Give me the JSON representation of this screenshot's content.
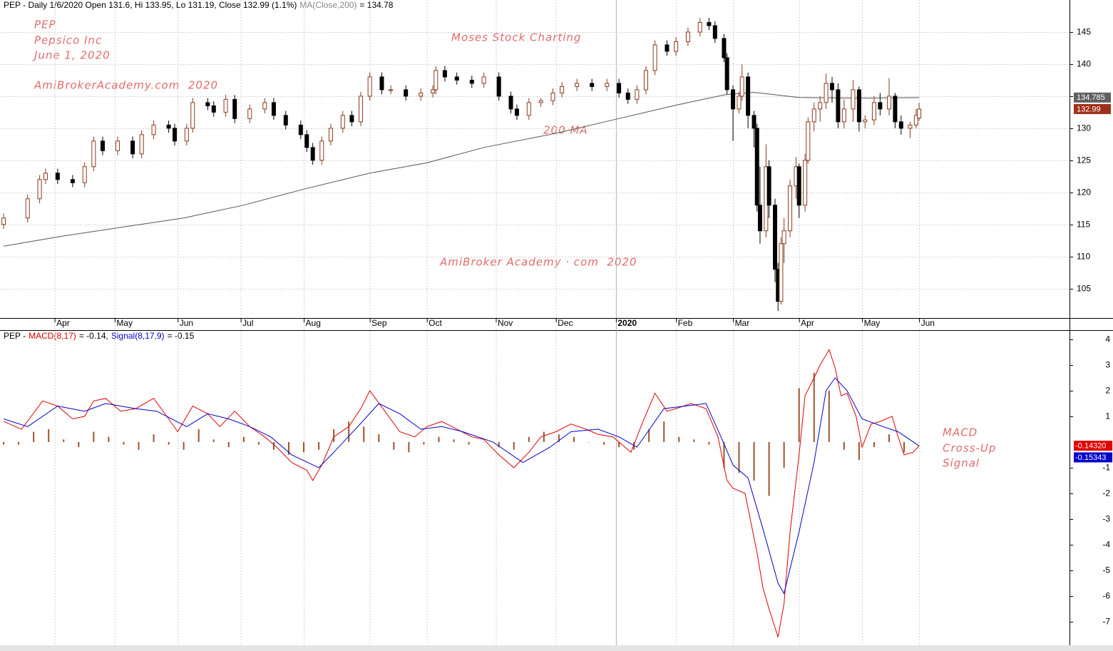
{
  "chart_data": [
    {
      "type": "candlestick",
      "title": "PEP - Daily 1/6/2020 Open 131.6, Hi 133.95, Lo 131.19, Close 132.99 (1.1%)",
      "x": [
        0,
        8,
        12,
        14,
        18,
        23,
        27,
        30,
        33,
        38,
        43,
        46,
        50,
        55,
        57,
        61,
        63,
        68,
        70,
        74,
        77,
        82,
        87,
        90,
        94,
        99,
        101,
        103,
        106,
        109,
        113,
        116,
        119,
        122,
        126,
        129,
        134,
        139,
        143,
        144,
        147,
        151,
        156,
        160,
        165,
        169,
        171,
        175,
        179,
        183,
        186,
        191,
        196,
        201,
        205,
        208,
        211,
        214,
        217,
        221,
        224,
        228,
        232,
        235,
        237,
        240,
        241,
        243,
        245,
        246,
        248,
        250,
        251,
        252,
        254,
        255,
        257,
        258,
        259,
        260,
        262,
        264,
        265,
        267,
        268,
        270,
        272,
        274,
        276,
        278,
        280,
        283,
        285,
        287,
        290,
        292,
        295,
        297,
        299,
        302,
        304,
        305
      ],
      "open": [
        115,
        116,
        119,
        122,
        123,
        122,
        121.5,
        124,
        128,
        126.5,
        128,
        126,
        129,
        130.5,
        130,
        128,
        130,
        134,
        133.5,
        132.5,
        134.5,
        131.5,
        133,
        134,
        132,
        130.5,
        129,
        127,
        125,
        128,
        130,
        132,
        131,
        135,
        138,
        136,
        136,
        135,
        135.5,
        136,
        139,
        138,
        137.5,
        137,
        138,
        135,
        133,
        132,
        134,
        134.3,
        135.5,
        136.5,
        137,
        136.5,
        137,
        135.5,
        134.5,
        136,
        139,
        143,
        142,
        143.5,
        145,
        146.5,
        146,
        144,
        141,
        136,
        133,
        135,
        138,
        132,
        130,
        118,
        114,
        124,
        118,
        108,
        103,
        112,
        114,
        121,
        124,
        118,
        125,
        131,
        133,
        134,
        137,
        136,
        131,
        133,
        136,
        131,
        131.3,
        134,
        133,
        135,
        131,
        130,
        130.5,
        131.6
      ],
      "high": [
        116.7,
        119.7,
        122.7,
        123.7,
        123.7,
        122.7,
        124.7,
        128.7,
        128.7,
        128.7,
        128.7,
        129.7,
        131.2,
        131.2,
        130.7,
        130.7,
        134.7,
        134.7,
        134.2,
        135.2,
        135.2,
        133.7,
        134.7,
        134.7,
        132.7,
        131.2,
        129.7,
        127.7,
        128.7,
        130.7,
        132.7,
        132.7,
        135.7,
        138.7,
        138.7,
        136.7,
        136.7,
        136.2,
        136.7,
        139.7,
        139.7,
        138.7,
        138.2,
        138.7,
        138.7,
        135.7,
        133.7,
        134.7,
        134.7,
        136.2,
        137.2,
        137.7,
        137.7,
        137.7,
        137.7,
        136.2,
        136.7,
        139.7,
        143.7,
        143.7,
        144.2,
        145.7,
        147.2,
        147.2,
        146.7,
        144.7,
        141.7,
        136.7,
        135.7,
        140,
        138.7,
        132.7,
        130.7,
        124,
        127.5,
        125,
        119,
        109,
        113,
        116,
        122,
        125.5,
        124.5,
        126,
        131.7,
        134,
        135,
        138.5,
        138,
        137,
        134.5,
        137.5,
        136.5,
        132,
        135,
        135.5,
        137.8,
        135.5,
        132,
        131,
        133,
        133.95
      ],
      "low": [
        114.3,
        115.3,
        118.3,
        121.3,
        121.3,
        120.8,
        120.8,
        123.3,
        125.8,
        125.8,
        125.3,
        125.3,
        128.3,
        129.3,
        127.3,
        127.3,
        129.3,
        132.8,
        131.8,
        131.8,
        130.8,
        130.8,
        132.3,
        131.3,
        129.8,
        128.3,
        126.3,
        124.3,
        124.3,
        127.3,
        129.3,
        130.3,
        130.3,
        134.3,
        135.3,
        135.3,
        134.3,
        134.3,
        134.8,
        135.3,
        137.3,
        136.8,
        136.3,
        136.3,
        134.3,
        132.3,
        131.3,
        131.3,
        133.3,
        133.6,
        134.8,
        135.8,
        135.8,
        135.8,
        134.8,
        133.8,
        133.8,
        135.3,
        138.3,
        141.3,
        141.3,
        142.8,
        144.3,
        145.3,
        143.3,
        140.3,
        135.3,
        128,
        132.3,
        134.3,
        130,
        127,
        117,
        112,
        113,
        116,
        106,
        101.5,
        102.5,
        109,
        113,
        119,
        116,
        117,
        124.5,
        129.5,
        131,
        133,
        134,
        130,
        130,
        131,
        129.5,
        130,
        130.5,
        132,
        132,
        130,
        129,
        128.5,
        130,
        131.19
      ],
      "close": [
        116,
        119,
        122,
        123,
        122,
        121.5,
        124,
        128,
        126.5,
        128,
        126,
        129,
        130.5,
        130,
        128,
        130,
        134,
        133.5,
        132.5,
        134.5,
        131.5,
        133,
        134,
        132,
        130.5,
        129,
        127,
        125,
        128,
        130,
        132,
        131,
        135,
        138,
        136,
        136,
        135,
        135.5,
        136,
        139,
        138,
        137.5,
        137,
        138,
        135,
        133,
        132,
        134,
        134.3,
        135.5,
        136.5,
        137,
        136.5,
        137,
        135.5,
        134.5,
        136,
        139,
        143,
        142,
        143.5,
        145,
        146.5,
        146,
        144,
        141,
        136,
        133,
        135,
        138,
        132,
        130,
        118,
        114,
        124,
        118,
        108,
        103,
        112,
        114,
        121,
        124,
        118,
        125,
        131,
        133,
        134,
        137,
        136,
        131,
        133,
        136,
        131,
        131.3,
        134,
        133,
        135,
        131,
        130,
        130.5,
        132,
        132.99
      ],
      "up_color": "#8b3a1a",
      "down_color": "#000000",
      "ma": {
        "name": "MA(Close,200)",
        "readout": "= 134.78",
        "color": "#555555",
        "x": [
          0,
          20,
          40,
          60,
          80,
          100,
          122,
          141,
          160,
          184,
          204,
          224,
          240,
          250,
          265,
          285,
          305
        ],
        "values": [
          111.6,
          113.2,
          114.6,
          116,
          118,
          120.5,
          123,
          124.6,
          127,
          129.2,
          131.4,
          133.6,
          135.2,
          135.6,
          134.8,
          134.7,
          134.78
        ]
      },
      "last_ma": 134.785,
      "last_ma_color": "#606060",
      "last_close": 132.99,
      "last_close_color": "#a0301a",
      "xlim": [
        -1.2,
        355.1
      ],
      "xticks": [
        {
          "value": 17,
          "label": "Apr"
        },
        {
          "value": 37,
          "label": "May"
        },
        {
          "value": 58,
          "label": "Jun"
        },
        {
          "value": 79,
          "label": "Jul"
        },
        {
          "value": 100,
          "label": "Aug"
        },
        {
          "value": 122,
          "label": "Sep"
        },
        {
          "value": 141,
          "label": "Oct"
        },
        {
          "value": 164,
          "label": "Nov"
        },
        {
          "value": 184,
          "label": "Dec"
        },
        {
          "value": 204,
          "label": "2020"
        },
        {
          "value": 224,
          "label": "Feb"
        },
        {
          "value": 243,
          "label": "Mar"
        },
        {
          "value": 265,
          "label": "Apr"
        },
        {
          "value": 286,
          "label": "May"
        },
        {
          "value": 305,
          "label": "Jun"
        }
      ],
      "ylim": [
        100.4,
        150
      ],
      "yticks": [
        105,
        110,
        115,
        120,
        125,
        130,
        135,
        140,
        145
      ],
      "grid": true,
      "annotations": [
        "PEP",
        "Pepsico Inc",
        "June 1, 2020",
        "AmiBrokerAcademy.com  2020",
        "Moses Stock Charting",
        "200 MA",
        "AmiBroker Academy · com  2020"
      ]
    },
    {
      "type": "macd",
      "prefix": "PEP -",
      "series": [
        {
          "name": "MACD(8,17)",
          "readout": "= -0.14,",
          "color": "#e00000",
          "x": [
            0,
            6,
            13,
            18,
            23,
            27,
            30,
            34,
            39,
            44,
            50,
            55,
            58,
            63,
            68,
            72,
            77,
            82,
            87,
            91,
            96,
            101,
            103,
            106,
            110,
            115,
            119,
            122,
            127,
            132,
            137,
            141,
            146,
            151,
            156,
            160,
            165,
            170,
            175,
            179,
            184,
            189,
            194,
            198,
            203,
            209,
            213,
            217,
            221,
            224,
            229,
            234,
            238,
            241,
            243,
            247,
            251,
            253,
            255,
            258,
            260,
            262,
            265,
            267,
            270,
            272,
            275,
            277,
            279,
            281,
            284,
            286,
            289,
            292,
            296,
            298,
            300,
            303,
            305
          ],
          "values": [
            0.8,
            0.5,
            1.6,
            1.4,
            0.9,
            1.0,
            1.6,
            1.7,
            1.2,
            1.3,
            1.7,
            0.9,
            0.4,
            1.4,
            1.1,
            0.6,
            1.2,
            0.6,
            0.2,
            -0.2,
            -0.8,
            -1.1,
            -1.5,
            -0.9,
            0.2,
            0.6,
            1.3,
            2.0,
            1.2,
            0.4,
            0.2,
            0.6,
            0.8,
            0.5,
            0.2,
            0.1,
            -0.5,
            -1.0,
            -0.4,
            0.2,
            0.4,
            0.7,
            0.5,
            0.3,
            0.2,
            -0.4,
            0.8,
            1.9,
            1.2,
            1.3,
            1.5,
            1.3,
            0.2,
            -1.5,
            -1.8,
            -2.0,
            -4.3,
            -5.7,
            -6.5,
            -7.6,
            -6.3,
            -3.5,
            -0.5,
            1.8,
            2.5,
            3.0,
            3.6,
            2.9,
            1.8,
            1.9,
            1.0,
            -0.2,
            0.7,
            0.8,
            1.0,
            0.2,
            -0.5,
            -0.4,
            -0.14
          ],
          "last": {
            "value": -0.1432,
            "label": "-0.14320"
          }
        },
        {
          "name": "Signal(8,17,9)",
          "readout": "= -0.15",
          "color": "#0000cc",
          "x": [
            0,
            8,
            18,
            27,
            34,
            44,
            51,
            61,
            68,
            75,
            82,
            89,
            96,
            105,
            110,
            118,
            125,
            132,
            139,
            146,
            153,
            163,
            173,
            182,
            189,
            198,
            205,
            211,
            220,
            227,
            234,
            239,
            243,
            248,
            253,
            258,
            260,
            265,
            270,
            274,
            277,
            281,
            286,
            293,
            298,
            305
          ],
          "values": [
            0.9,
            0.6,
            1.4,
            1.2,
            1.5,
            1.3,
            1.2,
            0.6,
            1.1,
            0.9,
            0.6,
            0.2,
            -0.5,
            -1.0,
            -0.4,
            0.6,
            1.5,
            1.1,
            0.5,
            0.6,
            0.4,
            0.0,
            -0.8,
            -0.2,
            0.4,
            0.5,
            0.2,
            -0.2,
            1.3,
            1.4,
            1.5,
            0.2,
            -0.9,
            -1.4,
            -3.4,
            -5.5,
            -5.9,
            -3.5,
            -0.8,
            2.0,
            2.5,
            2.0,
            0.9,
            0.6,
            0.4,
            -0.15
          ],
          "last": -0.15343
        }
      ],
      "histogram": {
        "color": "#a0522d",
        "x": [
          0,
          5,
          10,
          15,
          20,
          25,
          30,
          35,
          40,
          45,
          50,
          55,
          60,
          65,
          70,
          75,
          80,
          85,
          90,
          95,
          100,
          105,
          110,
          115,
          120,
          125,
          130,
          135,
          140,
          145,
          150,
          155,
          160,
          165,
          170,
          175,
          180,
          185,
          190,
          195,
          200,
          205,
          210,
          215,
          220,
          225,
          230,
          235,
          240,
          245,
          250,
          255,
          260,
          265,
          270,
          275,
          280,
          285,
          290,
          295,
          300,
          305
        ],
        "values": [
          -0.1,
          -0.1,
          0.4,
          0.5,
          0.1,
          -0.2,
          0.4,
          0.2,
          -0.1,
          -0.3,
          0.3,
          -0.1,
          -0.3,
          0.5,
          0.1,
          -0.2,
          0.2,
          -0.1,
          -0.3,
          -0.5,
          -0.4,
          -0.3,
          0.5,
          0.8,
          0.6,
          0.3,
          -0.3,
          -0.4,
          -0.1,
          0.2,
          0.1,
          -0.1,
          0.0,
          -0.2,
          -0.3,
          0.2,
          0.4,
          0.3,
          0.2,
          0.0,
          -0.1,
          -0.2,
          -0.3,
          0.5,
          0.8,
          0.2,
          0.1,
          -0.1,
          -1.0,
          -1.2,
          -1.5,
          -2.1,
          -1.0,
          2.1,
          2.7,
          2.0,
          -0.3,
          -0.7,
          -0.2,
          0.3,
          -0.4,
          0.0
        ]
      },
      "ylim": [
        -7.92,
        4.36
      ],
      "yticks": [
        4,
        3,
        2,
        1,
        -1,
        -2,
        -3,
        -4,
        -5,
        -6,
        -7
      ],
      "annotations": [
        "MACD",
        "Cross-Up",
        "Signal"
      ]
    }
  ]
}
